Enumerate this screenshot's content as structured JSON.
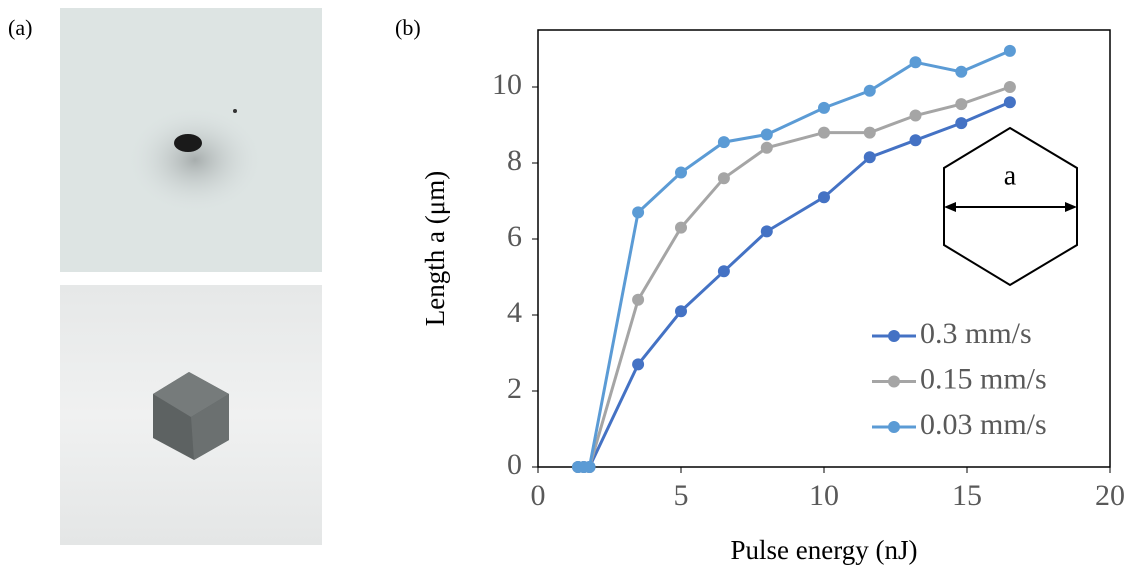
{
  "panel_labels": [
    "(a)",
    "(b)"
  ],
  "chart_data": {
    "type": "line",
    "x_label": "Pulse energy (nJ)",
    "y_label": "Length a (μm)",
    "xlim": [
      0,
      20
    ],
    "xticks": [
      0,
      5,
      10,
      15,
      20
    ],
    "ylim": [
      0,
      11.5
    ],
    "yticks": [
      0,
      2,
      4,
      6,
      8,
      10
    ],
    "legend": "lower right",
    "inset_label": "a",
    "x": [
      1.4,
      1.6,
      1.8,
      3.5,
      5,
      6.5,
      8,
      10,
      11.6,
      13.2,
      14.8,
      16.5
    ],
    "series": [
      {
        "name": "0.3 mm/s",
        "color": "#4472c4",
        "values": [
          0,
          0,
          0,
          2.7,
          4.1,
          5.15,
          6.2,
          7.1,
          8.15,
          8.6,
          9.05,
          9.6
        ]
      },
      {
        "name": "0.15 mm/s",
        "color": "#a5a5a5",
        "values": [
          0,
          0,
          0,
          4.4,
          6.3,
          7.6,
          8.4,
          8.8,
          8.8,
          9.25,
          9.55,
          10
        ]
      },
      {
        "name": "0.03 mm/s",
        "color": "#5b9bd5",
        "values": [
          0,
          0,
          0,
          6.7,
          7.75,
          8.55,
          8.75,
          9.45,
          9.9,
          10.65,
          10.4,
          10.95
        ]
      }
    ]
  }
}
